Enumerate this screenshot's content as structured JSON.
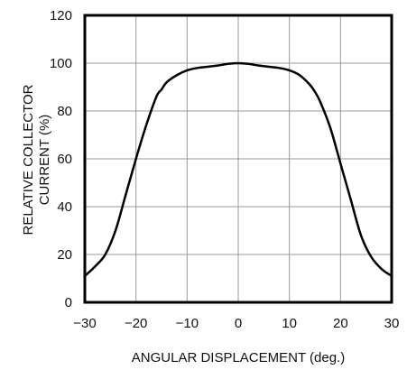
{
  "chart_data": {
    "type": "line",
    "title": "",
    "xlabel": "ANGULAR DISPLACEMENT (deg.)",
    "ylabel_line1": "RELATIVE COLLECTOR",
    "ylabel_line2": "CURRENT (%)",
    "xlim": [
      -30,
      30
    ],
    "ylim": [
      0,
      120
    ],
    "grid": true,
    "xticks": [
      -30,
      -20,
      -10,
      0,
      10,
      20,
      30
    ],
    "xtick_labels": [
      "−30",
      "−20",
      "−10",
      "0",
      "10",
      "20",
      "30"
    ],
    "yticks": [
      0,
      20,
      40,
      60,
      80,
      100,
      120
    ],
    "ytick_labels": [
      "0",
      "20",
      "40",
      "60",
      "80",
      "100",
      "120"
    ],
    "series": [
      {
        "x": [
          -30,
          -28,
          -26,
          -24,
          -22,
          -20,
          -18,
          -16,
          -15,
          -14,
          -12,
          -10,
          -8,
          -6,
          -4,
          -2,
          0,
          2,
          4,
          6,
          8,
          10,
          12,
          14,
          15,
          16,
          18,
          20,
          22,
          24,
          26,
          28,
          30
        ],
        "y": [
          11,
          15,
          20,
          30,
          45,
          60,
          74,
          86,
          89,
          92,
          95,
          97,
          98,
          98.5,
          99,
          99.7,
          100,
          99.7,
          99,
          98.5,
          98,
          97,
          95,
          91,
          88,
          84,
          73,
          58,
          43,
          28,
          19,
          14,
          11
        ]
      }
    ]
  }
}
